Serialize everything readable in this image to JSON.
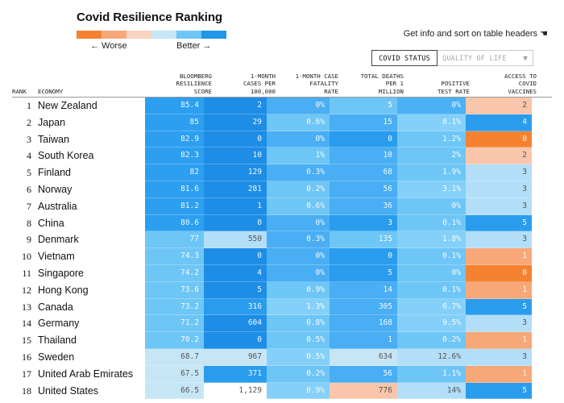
{
  "page": {
    "title": "Covid Resilience Ranking",
    "legend": {
      "worse": "← Worse",
      "better": "Better →",
      "colors": [
        "#f58231",
        "#f8a878",
        "#f9d3bf",
        "#c6e6f6",
        "#6cc5f5",
        "#2196e8"
      ]
    },
    "info": "Get info and sort on table headers"
  },
  "tabs": {
    "active": "COVID STATUS",
    "inactive": "QUALITY OF LIFE"
  },
  "headers": {
    "rank": "RANK",
    "economy": "ECONOMY",
    "score": "BLOOMBERG\nRESILIENCE\nSCORE",
    "cases": "1-MONTH\nCASES PER\n100,000",
    "cfr": "1-MONTH CASE\nFATALITY\nRATE",
    "deaths": "TOTAL DEATHS\nPER 1\nMILLION",
    "ptr": "POSITIVE\nTEST RATE",
    "vaccines": "ACCESS TO\nCOVID\nVACCINES"
  },
  "rows": [
    {
      "rank": "1",
      "economy": "New Zealand",
      "score": "85.4",
      "cases": "2",
      "cfr": "0%",
      "deaths": "5",
      "ptr": "0%",
      "vaccines": "2"
    },
    {
      "rank": "2",
      "economy": "Japan",
      "score": "85",
      "cases": "29",
      "cfr": "0.6%",
      "deaths": "15",
      "ptr": "8.1%",
      "vaccines": "4"
    },
    {
      "rank": "3",
      "economy": "Taiwan",
      "score": "82.9",
      "cases": "0",
      "cfr": "0%",
      "deaths": "0",
      "ptr": "1.2%",
      "vaccines": "0"
    },
    {
      "rank": "4",
      "economy": "South Korea",
      "score": "82.3",
      "cases": "10",
      "cfr": "1%",
      "deaths": "10",
      "ptr": "2%",
      "vaccines": "2"
    },
    {
      "rank": "5",
      "economy": "Finland",
      "score": "82",
      "cases": "129",
      "cfr": "0.3%",
      "deaths": "68",
      "ptr": "1.9%",
      "vaccines": "3"
    },
    {
      "rank": "6",
      "economy": "Norway",
      "score": "81.6",
      "cases": "281",
      "cfr": "0.2%",
      "deaths": "56",
      "ptr": "3.1%",
      "vaccines": "3"
    },
    {
      "rank": "7",
      "economy": "Australia",
      "score": "81.2",
      "cases": "1",
      "cfr": "0.6%",
      "deaths": "36",
      "ptr": "0%",
      "vaccines": "3"
    },
    {
      "rank": "8",
      "economy": "China",
      "score": "80.6",
      "cases": "0",
      "cfr": "0%",
      "deaths": "3",
      "ptr": "0.1%",
      "vaccines": "5"
    },
    {
      "rank": "9",
      "economy": "Denmark",
      "score": "77",
      "cases": "550",
      "cfr": "0.3%",
      "deaths": "135",
      "ptr": "1.8%",
      "vaccines": "3"
    },
    {
      "rank": "10",
      "economy": "Vietnam",
      "score": "74.3",
      "cases": "0",
      "cfr": "0%",
      "deaths": "0",
      "ptr": "0.1%",
      "vaccines": "1"
    },
    {
      "rank": "11",
      "economy": "Singapore",
      "score": "74.2",
      "cases": "4",
      "cfr": "0%",
      "deaths": "5",
      "ptr": "0%",
      "vaccines": "0"
    },
    {
      "rank": "12",
      "economy": "Hong Kong",
      "score": "73.6",
      "cases": "5",
      "cfr": "0.9%",
      "deaths": "14",
      "ptr": "0.1%",
      "vaccines": "1"
    },
    {
      "rank": "13",
      "economy": "Canada",
      "score": "73.2",
      "cases": "316",
      "cfr": "1.3%",
      "deaths": "305",
      "ptr": "6.7%",
      "vaccines": "5"
    },
    {
      "rank": "14",
      "economy": "Germany",
      "score": "71.2",
      "cases": "604",
      "cfr": "0.8%",
      "deaths": "168",
      "ptr": "9.5%",
      "vaccines": "3"
    },
    {
      "rank": "15",
      "economy": "Thailand",
      "score": "70.2",
      "cases": "0",
      "cfr": "0.5%",
      "deaths": "1",
      "ptr": "0.2%",
      "vaccines": "1"
    },
    {
      "rank": "16",
      "economy": "Sweden",
      "score": "68.7",
      "cases": "967",
      "cfr": "0.5%",
      "deaths": "634",
      "ptr": "12.6%",
      "vaccines": "3"
    },
    {
      "rank": "17",
      "economy": "United Arab Emirates",
      "score": "67.5",
      "cases": "371",
      "cfr": "0.2%",
      "deaths": "56",
      "ptr": "1.1%",
      "vaccines": "1"
    },
    {
      "rank": "18",
      "economy": "United States",
      "score": "66.5",
      "cases": "1,129",
      "cfr": "0.9%",
      "deaths": "776",
      "ptr": "14%",
      "vaccines": "5"
    }
  ],
  "cell_colors": [
    [
      "#2c9ff0",
      "#1e8de6",
      "#49aef3",
      "#6ec6f6",
      "#4ab1f4",
      "#f9c6ab"
    ],
    [
      "#2c9ff0",
      "#1e8de6",
      "#6ec6f6",
      "#49aef3",
      "#84d0f8",
      "#2a9cee"
    ],
    [
      "#2c9ff0",
      "#1e8de6",
      "#49aef3",
      "#2a9cee",
      "#6ec6f6",
      "#f58231"
    ],
    [
      "#2c9ff0",
      "#1e8de6",
      "#6ec6f6",
      "#49aef3",
      "#6ec6f6",
      "#f9c6ab"
    ],
    [
      "#2c9ff0",
      "#1e8de6",
      "#49aef3",
      "#49aef3",
      "#6ec6f6",
      "#b2def8"
    ],
    [
      "#2c9ff0",
      "#1e8de6",
      "#6ec6f6",
      "#49aef3",
      "#84d0f8",
      "#b2def8"
    ],
    [
      "#2c9ff0",
      "#1e8de6",
      "#6ec6f6",
      "#49aef3",
      "#6ec6f6",
      "#b2def8"
    ],
    [
      "#2c9ff0",
      "#1e8de6",
      "#49aef3",
      "#2a9cee",
      "#6ec6f6",
      "#2a9cee"
    ],
    [
      "#6ec6f6",
      "#b2def8",
      "#49aef3",
      "#6ec6f6",
      "#84d0f8",
      "#b2def8"
    ],
    [
      "#6ec6f6",
      "#1e8de6",
      "#49aef3",
      "#2a9cee",
      "#6ec6f6",
      "#f8a878"
    ],
    [
      "#6ec6f6",
      "#1e8de6",
      "#49aef3",
      "#2a9cee",
      "#6ec6f6",
      "#f58231"
    ],
    [
      "#6ec6f6",
      "#1e8de6",
      "#6ec6f6",
      "#49aef3",
      "#6ec6f6",
      "#f8a878"
    ],
    [
      "#6ec6f6",
      "#2a9cee",
      "#84d0f8",
      "#49aef3",
      "#84d0f8",
      "#2a9cee"
    ],
    [
      "#6ec6f6",
      "#1e8de6",
      "#6ec6f6",
      "#49aef3",
      "#84d0f8",
      "#b2def8"
    ],
    [
      "#6ec6f6",
      "#1e8de6",
      "#6ec6f6",
      "#49aef3",
      "#6ec6f6",
      "#f8a878"
    ],
    [
      "#c6e6f6",
      "#c6e6f6",
      "#84d0f8",
      "#c6e6f6",
      "#b2def8",
      "#b2def8"
    ],
    [
      "#c6e6f6",
      "#2a9cee",
      "#6ec6f6",
      "#49aef3",
      "#6ec6f6",
      "#f8a878"
    ],
    [
      "#c6e6f6",
      "#ffffff",
      "#84d0f8",
      "#f9c6ab",
      "#b2def8",
      "#2a9cee"
    ]
  ]
}
